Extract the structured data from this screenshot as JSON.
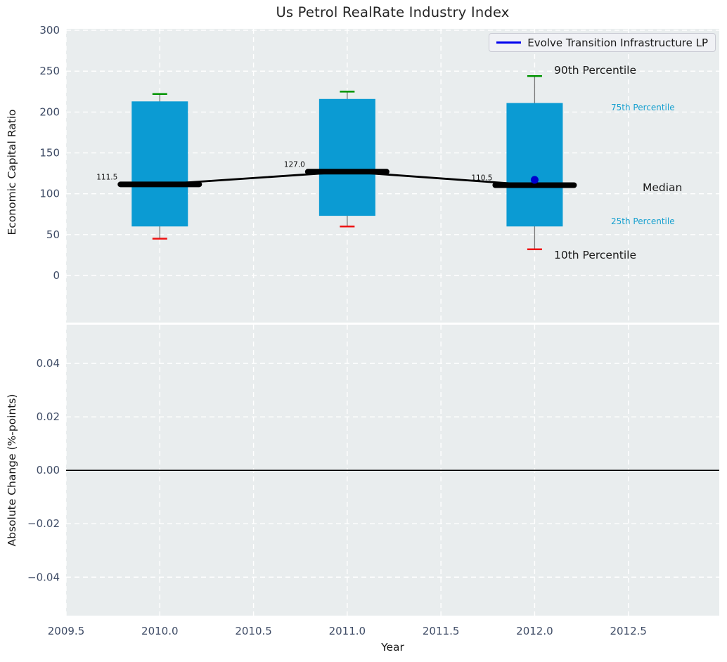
{
  "page": {
    "title": "Us Petrol RealRate Industry Index"
  },
  "legend": {
    "label": "Evolve Transition Infrastructure LP"
  },
  "annotations": {
    "p90": "90th Percentile",
    "p75": "75th Percentile",
    "median": "Median",
    "p25": "25th Percentile",
    "p10": "10th Percentile"
  },
  "colors": {
    "plot_bg": "#e9edee",
    "grid": "#ffffff",
    "box_fill": "#0b9bd3",
    "whisker": "#777777",
    "cap_90th": "#009400",
    "cap_10th": "#ee1111",
    "median_line": "#000000",
    "fund_dot": "#0000cd",
    "legend_line": "#0000ee",
    "percentile_label": "#17a0cf",
    "tick_label": "#3f4c66",
    "title_text": "#262626"
  },
  "chart_data": [
    {
      "type": "boxplot",
      "title": "Us Petrol RealRate Industry Index",
      "ylabel": "Economic Capital Ratio",
      "xlim": [
        2009.5,
        2012.985
      ],
      "ylim": [
        -57.6,
        301.8
      ],
      "yticks": [
        0,
        50,
        100,
        150,
        200,
        250,
        300
      ],
      "xticks": [
        2009.5,
        2010,
        2010.5,
        2011,
        2011.5,
        2012,
        2012.5
      ],
      "grid": "white-dashed",
      "legend_position": "upper right",
      "series_label": "Evolve Transition Infrastructure LP",
      "boxes": [
        {
          "x": 2010,
          "p10": 45,
          "p25": 60,
          "median": 111.5,
          "p75": 213,
          "p90": 222,
          "median_label": "111.5"
        },
        {
          "x": 2011,
          "p10": 60,
          "p25": 73,
          "median": 127.0,
          "p75": 216,
          "p90": 225,
          "median_label": "127.0"
        },
        {
          "x": 2012,
          "p10": 32,
          "p25": 60,
          "median": 110.5,
          "p75": 211,
          "p90": 244,
          "median_label": "110.5"
        }
      ],
      "fund_point": {
        "x": 2012,
        "y": 117
      }
    },
    {
      "type": "line",
      "ylabel": "Absolute Change (%-points)",
      "xlabel": "Year",
      "xlim": [
        2009.5,
        2012.985
      ],
      "ylim": [
        -0.0544,
        0.0545
      ],
      "yticks": [
        -0.04,
        -0.02,
        0,
        0.02,
        0.04
      ],
      "xticks": [
        2009.5,
        2010,
        2010.5,
        2011,
        2011.5,
        2012,
        2012.5
      ],
      "zero_line": 0,
      "values": []
    }
  ]
}
